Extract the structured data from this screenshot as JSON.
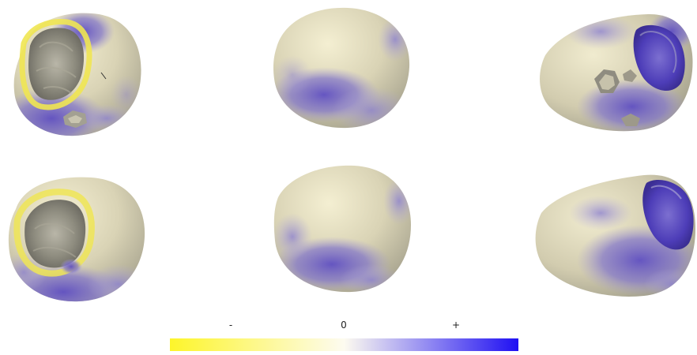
{
  "colormap": {
    "ticks": {
      "negative": "-",
      "zero": "0",
      "positive": "+"
    },
    "colors": {
      "negative": "#fdf52a",
      "neutral": "#fdfbf0",
      "positive": "#1f10f3"
    }
  },
  "surface_colors": {
    "base": "#d8d2b4",
    "highlight": "#f2ecce",
    "shade": "#9d9a86",
    "purple_light": "#9e93d4",
    "purple_mid": "#7467c2",
    "purple_deep": "#5543c4",
    "yellow_rim": "#efe64f"
  },
  "grid": {
    "rows": 2,
    "columns": 3
  }
}
